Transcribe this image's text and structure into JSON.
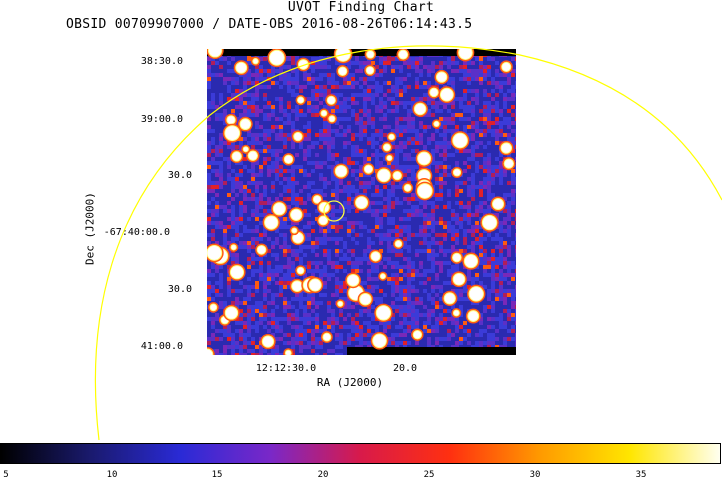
{
  "header": {
    "title": "UVOT Finding Chart",
    "subtitle": "OBSID 00709907000 / DATE-OBS 2016-08-26T06:14:43.5"
  },
  "axes": {
    "ra_label": "RA (J2000)",
    "dec_label": "Dec (J2000)",
    "ra_ticks": [
      "12:12:30.0",
      "20.0"
    ],
    "dec_ticks": [
      "38:30.0",
      "39:00.0",
      "30.0",
      "-67:40:00.0",
      "30.0",
      "41:00.0"
    ]
  },
  "colorbar": {
    "labels": [
      "5",
      "10",
      "15",
      "20",
      "25",
      "30",
      "35"
    ],
    "stops": [
      "#000000",
      "#1a1a6e",
      "#2a2ad6",
      "#7a28c8",
      "#d81a4a",
      "#ff3010",
      "#ff9a00",
      "#ffe600",
      "#fffff0"
    ]
  },
  "colors": {
    "background_field": "#3232c8",
    "marker_circle": "#ffff40",
    "fov_arc": "#ffff00"
  },
  "icons": {
    "target_marker": "circle-marker-icon"
  }
}
